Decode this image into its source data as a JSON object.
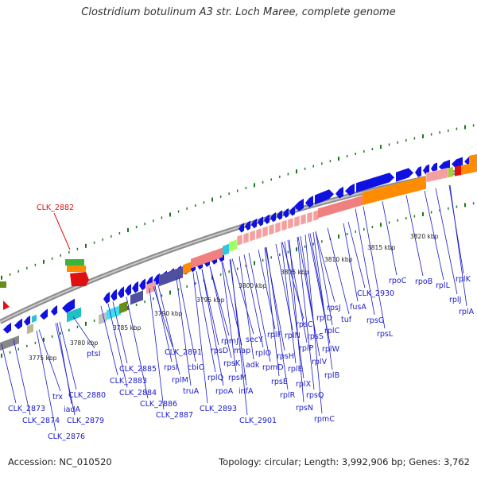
{
  "title": "Clostridium botulinum A3 str. Loch Maree, complete genome",
  "accession": "Accession: NC_010520",
  "topology": "Topology: circular; Length: 3,992,906 bp; Genes: 3,762",
  "colors": {
    "backbone": "#888888",
    "gene_blue": "#1010e0",
    "rrna_orange": "#ff8c00",
    "ribosomal_pink": "#f08080",
    "label_blue": "#1a1acc",
    "label_red": "#e01010",
    "tick_green": "#1a7a1a"
  },
  "kbp_ticks": [
    "3775 kbp",
    "3780 kbp",
    "3785 kbp",
    "3790 kbp",
    "3795 kbp",
    "3800 kbp",
    "3805 kbp",
    "3810 kbp",
    "3815 kbp",
    "3820 kbp"
  ],
  "highlight_gene": "CLK_2882",
  "gene_labels": [
    "CLK_2873",
    "CLK_2874",
    "CLK_2876",
    "trx",
    "iadA",
    "CLK_2880",
    "CLK_2879",
    "ptsI",
    "CLK_2885",
    "CLK_2883",
    "CLK_2884",
    "CLK_2886",
    "CLK_2887",
    "rpsI",
    "CLK_2891",
    "rplM",
    "truA",
    "cbiO",
    "rplQ",
    "rpoA",
    "CLK_2893",
    "rpsD",
    "rpmJ",
    "rpsK",
    "rpsM",
    "infA",
    "map",
    "secY",
    "adk",
    "CLK_2901",
    "rplO",
    "rpmD",
    "rpsE",
    "rplF",
    "rpsH",
    "rplR",
    "rplE",
    "rplN",
    "rplX",
    "rpsC",
    "rpsN",
    "rpsQ",
    "rplP",
    "rplV",
    "rpsS",
    "rpmC",
    "rplB",
    "rplW",
    "rplD",
    "rplC",
    "rpsJ",
    "tuf",
    "fusA",
    "CLK_2930",
    "rpsG",
    "rpsL",
    "rpoC",
    "rpoB",
    "rplL",
    "rplJ",
    "rplK",
    "rplA"
  ]
}
